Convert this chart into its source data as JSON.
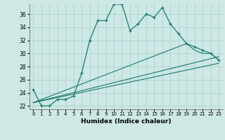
{
  "title": "",
  "xlabel": "Humidex (Indice chaleur)",
  "background_color": "#cde8e5",
  "grid_color": "#afd4d0",
  "line_color": "#1a7a6e",
  "xlim": [
    -0.5,
    23.5
  ],
  "ylim": [
    21.5,
    37.5
  ],
  "yticks": [
    22,
    24,
    26,
    28,
    30,
    32,
    34,
    36
  ],
  "xticks": [
    0,
    1,
    2,
    3,
    4,
    5,
    6,
    7,
    8,
    9,
    10,
    11,
    12,
    13,
    14,
    15,
    16,
    17,
    18,
    19,
    20,
    21,
    22,
    23
  ],
  "series": [
    {
      "x": [
        0,
        1,
        2,
        3,
        4,
        5,
        6,
        7,
        8,
        9,
        10,
        11,
        12,
        13,
        14,
        15,
        16,
        17,
        18,
        19,
        20,
        21,
        22,
        23
      ],
      "y": [
        24.5,
        22.0,
        22.0,
        23.0,
        23.0,
        23.5,
        27.0,
        32.0,
        35.0,
        35.0,
        37.5,
        37.5,
        33.5,
        34.5,
        36.0,
        35.5,
        37.0,
        34.5,
        33.0,
        31.5,
        31.0,
        30.5,
        30.0,
        29.0
      ]
    },
    {
      "x": [
        0,
        19,
        20,
        21,
        22,
        23
      ],
      "y": [
        22.5,
        31.5,
        30.5,
        30.0,
        30.0,
        29.0
      ]
    },
    {
      "x": [
        0,
        23
      ],
      "y": [
        22.5,
        29.5
      ]
    },
    {
      "x": [
        0,
        23
      ],
      "y": [
        22.5,
        28.5
      ]
    }
  ]
}
